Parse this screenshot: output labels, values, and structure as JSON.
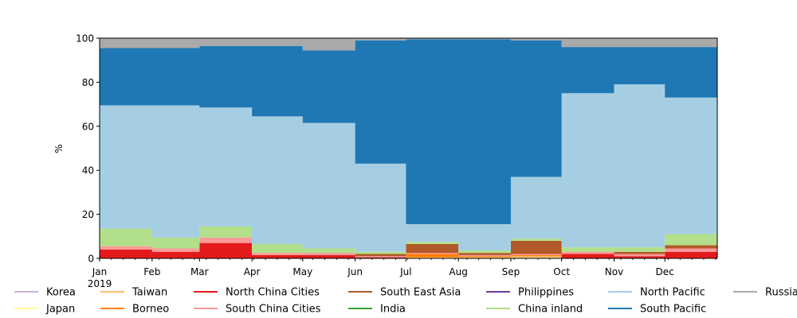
{
  "chart_data": {
    "type": "area",
    "stacked": true,
    "title": "",
    "xlabel": "",
    "ylabel": "%",
    "xlim": [
      "2019-01-01",
      "2019-12-31"
    ],
    "ylim": [
      0,
      100
    ],
    "yticks": [
      0,
      20,
      40,
      60,
      80,
      100
    ],
    "x_ticks": [
      {
        "label": "Jan",
        "date": "2019-01-01"
      },
      {
        "label": "Feb",
        "date": "2019-02-01"
      },
      {
        "label": "Mar",
        "date": "2019-03-01"
      },
      {
        "label": "Apr",
        "date": "2019-04-01"
      },
      {
        "label": "May",
        "date": "2019-05-01"
      },
      {
        "label": "Jun",
        "date": "2019-06-01"
      },
      {
        "label": "Jul",
        "date": "2019-07-01"
      },
      {
        "label": "Aug",
        "date": "2019-08-01"
      },
      {
        "label": "Sep",
        "date": "2019-09-01"
      },
      {
        "label": "Oct",
        "date": "2019-10-01"
      },
      {
        "label": "Nov",
        "date": "2019-11-01"
      },
      {
        "label": "Dec",
        "date": "2019-12-01"
      }
    ],
    "year_label": "2019",
    "grid": false,
    "legend_position": "bottom",
    "legend_columns": 8,
    "months": [
      "2019-01",
      "2019-02",
      "2019-03",
      "2019-04",
      "2019-05",
      "2019-06",
      "2019-07",
      "2019-08",
      "2019-09",
      "2019-10",
      "2019-11",
      "2019-12"
    ],
    "series": [
      {
        "name": "Korea",
        "color": "#cab2d6",
        "values": [
          0,
          0,
          0,
          0,
          0,
          0,
          0,
          0,
          0,
          0,
          0,
          0
        ]
      },
      {
        "name": "Japan",
        "color": "#ffff99",
        "values": [
          0,
          0,
          0,
          0,
          0,
          0,
          0,
          0,
          0,
          0,
          0,
          0
        ]
      },
      {
        "name": "Taiwan",
        "color": "#fdbf6f",
        "values": [
          0,
          0,
          0,
          0,
          0,
          0,
          0.5,
          0.5,
          1,
          0,
          0,
          0
        ]
      },
      {
        "name": "Borneo",
        "color": "#ff7f00",
        "values": [
          0,
          0,
          0,
          0,
          0,
          0,
          1.5,
          0.5,
          0.5,
          0,
          0,
          0
        ]
      },
      {
        "name": "North China Cities",
        "color": "#e31a1c",
        "values": [
          4,
          3,
          7,
          1.5,
          1.5,
          0.5,
          0,
          0,
          0,
          2,
          1,
          3
        ]
      },
      {
        "name": "South China Cities",
        "color": "#fb9a99",
        "values": [
          1.5,
          1.5,
          2.5,
          1,
          1,
          0.5,
          0.5,
          0.5,
          0.5,
          1,
          1,
          1.5
        ]
      },
      {
        "name": "South East Asia",
        "color": "#b15928",
        "values": [
          0,
          0,
          0,
          0,
          0,
          1,
          4,
          1,
          6,
          0,
          1,
          1.5
        ]
      },
      {
        "name": "India",
        "color": "#33a02c",
        "values": [
          0,
          0,
          0,
          0,
          0,
          0,
          0,
          0,
          0,
          0,
          0,
          0
        ]
      },
      {
        "name": "Philippines",
        "color": "#6a3d9a",
        "values": [
          0,
          0,
          0,
          0,
          0,
          0,
          0,
          0,
          0,
          0,
          0,
          0
        ]
      },
      {
        "name": "China inland",
        "color": "#b2df8a",
        "values": [
          8,
          5,
          5,
          4,
          2,
          1,
          1,
          1,
          1,
          2,
          2,
          5
        ]
      },
      {
        "name": "North Pacific",
        "color": "#a6cee3",
        "values": [
          56,
          60,
          54,
          58,
          57,
          40,
          8,
          12,
          28,
          70,
          74,
          62
        ]
      },
      {
        "name": "South Pacific",
        "color": "#1f78b4",
        "values": [
          26,
          26,
          28,
          32,
          33,
          56,
          84,
          84,
          62,
          21,
          17,
          23
        ]
      },
      {
        "name": "Russia",
        "color": "#aaaaaa",
        "values": [
          4.5,
          4.5,
          3.5,
          3.5,
          5.5,
          1,
          0.5,
          0.5,
          1,
          4,
          4,
          4
        ]
      }
    ]
  }
}
